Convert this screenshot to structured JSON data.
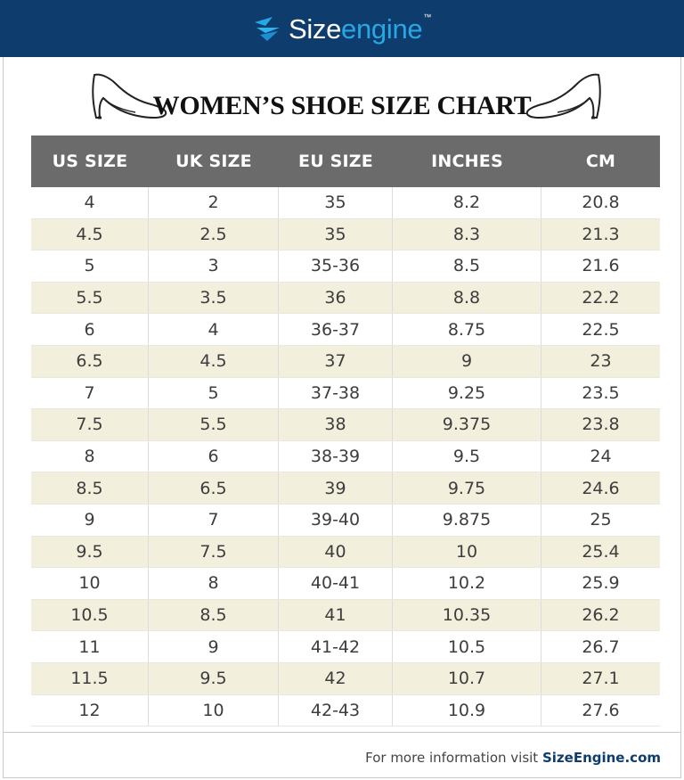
{
  "brand": {
    "name_part1": "Size",
    "name_part2": "engine",
    "tm": "™"
  },
  "title": "WOMEN’S SHOE SIZE CHART",
  "columns": [
    "US SIZE",
    "UK SIZE",
    "EU SIZE",
    "INCHES",
    "CM"
  ],
  "rows": [
    [
      "4",
      "2",
      "35",
      "8.2",
      "20.8"
    ],
    [
      "4.5",
      "2.5",
      "35",
      "8.3",
      "21.3"
    ],
    [
      "5",
      "3",
      "35-36",
      "8.5",
      "21.6"
    ],
    [
      "5.5",
      "3.5",
      "36",
      "8.8",
      "22.2"
    ],
    [
      "6",
      "4",
      "36-37",
      "8.75",
      "22.5"
    ],
    [
      "6.5",
      "4.5",
      "37",
      "9",
      "23"
    ],
    [
      "7",
      "5",
      "37-38",
      "9.25",
      "23.5"
    ],
    [
      "7.5",
      "5.5",
      "38",
      "9.375",
      "23.8"
    ],
    [
      "8",
      "6",
      "38-39",
      "9.5",
      "24"
    ],
    [
      "8.5",
      "6.5",
      "39",
      "9.75",
      "24.6"
    ],
    [
      "9",
      "7",
      "39-40",
      "9.875",
      "25"
    ],
    [
      "9.5",
      "7.5",
      "40",
      "10",
      "25.4"
    ],
    [
      "10",
      "8",
      "40-41",
      "10.2",
      "25.9"
    ],
    [
      "10.5",
      "8.5",
      "41",
      "10.35",
      "26.2"
    ],
    [
      "11",
      "9",
      "41-42",
      "10.5",
      "26.7"
    ],
    [
      "11.5",
      "9.5",
      "42",
      "10.7",
      "27.1"
    ],
    [
      "12",
      "10",
      "42-43",
      "10.9",
      "27.6"
    ]
  ],
  "footer": {
    "text": "For more information visit ",
    "link": "SizeEngine.com"
  },
  "colors": {
    "header_bar": "#0e3c6d",
    "brand_accent": "#27a8e6",
    "table_header": "#6b6b6b",
    "row_alt": "#f3efdd"
  },
  "icons": [
    "sizeengine-logo-icon",
    "high-heel-shoe-icon"
  ]
}
